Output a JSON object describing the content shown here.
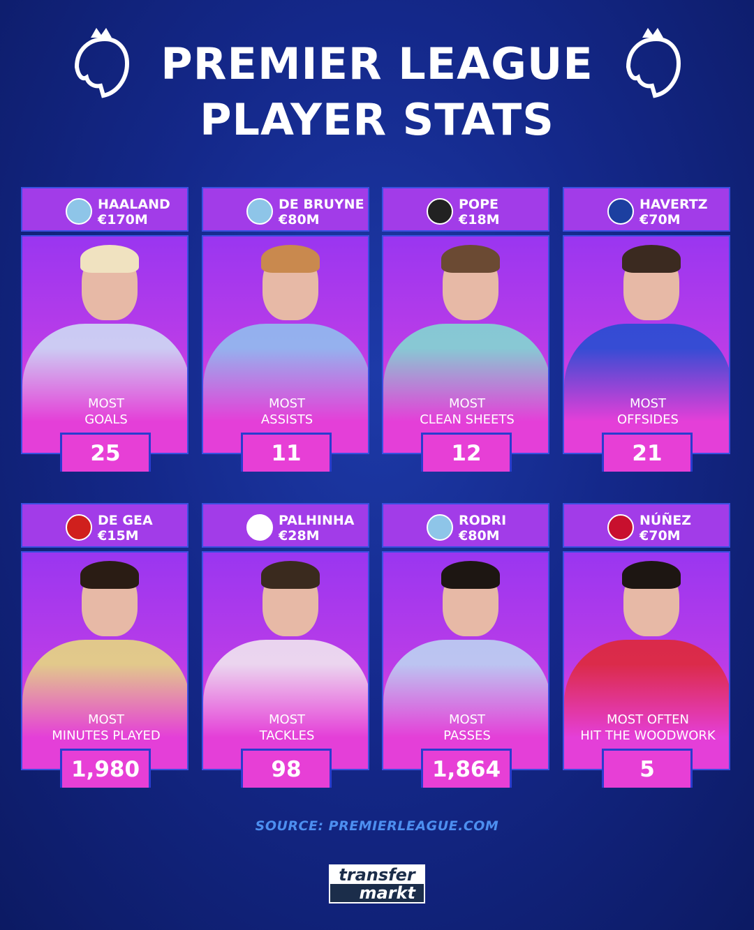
{
  "title": {
    "line1": "PREMIER LEAGUE",
    "line2": "PLAYER STATS"
  },
  "icons": {
    "header": "premier-league-lion-icon"
  },
  "colors": {
    "background": "#14288a",
    "card_header": "#a23ce8",
    "card_gradient_bottom": "#e43fd8",
    "value_box": "#e73fd6",
    "source": "#4d8ff0"
  },
  "cards": [
    {
      "name": "HAALAND",
      "value": "€170M",
      "club": "manchester-city",
      "stat_line1": "MOST",
      "stat_line2": "GOALS",
      "stat": "25",
      "jersey": "#cfe4f5",
      "hair": "#f0e2c0",
      "crest": "#8ec5e8"
    },
    {
      "name": "DE BRUYNE",
      "value": "€80M",
      "club": "manchester-city",
      "stat_line1": "MOST",
      "stat_line2": "ASSISTS",
      "stat": "11",
      "jersey": "#8ec5ee",
      "hair": "#c9894e",
      "crest": "#8ec5e8"
    },
    {
      "name": "POPE",
      "value": "€18M",
      "club": "newcastle-united",
      "stat_line1": "MOST",
      "stat_line2": "CLEAN SHEETS",
      "stat": "12",
      "jersey": "#7fe0d0",
      "hair": "#6b4a33",
      "crest": "#222222"
    },
    {
      "name": "HAVERTZ",
      "value": "€70M",
      "club": "chelsea",
      "stat_line1": "MOST",
      "stat_line2": "OFFSIDES",
      "stat": "21",
      "jersey": "#1f4fd0",
      "hair": "#3b2a20",
      "crest": "#1c3fa0"
    },
    {
      "name": "DE GEA",
      "value": "€15M",
      "club": "manchester-united",
      "stat_line1": "MOST",
      "stat_line2": "MINUTES PLAYED",
      "stat": "1,980",
      "jersey": "#e9e27a",
      "hair": "#2a1c14",
      "crest": "#d0201d"
    },
    {
      "name": "PALHINHA",
      "value": "€28M",
      "club": "fulham",
      "stat_line1": "MOST",
      "stat_line2": "TACKLES",
      "stat": "98",
      "jersey": "#f3f0f0",
      "hair": "#3a2a1e",
      "crest": "#ffffff"
    },
    {
      "name": "RODRI",
      "value": "€80M",
      "club": "manchester-city",
      "stat_line1": "MOST",
      "stat_line2": "PASSES",
      "stat": "1,864",
      "jersey": "#bcdcf2",
      "hair": "#1d1612",
      "crest": "#8ec5e8"
    },
    {
      "name": "NÚÑEZ",
      "value": "€70M",
      "club": "liverpool",
      "stat_line1": "MOST OFTEN",
      "stat_line2": "HIT THE WOODWORK",
      "stat": "5",
      "jersey": "#e0282e",
      "hair": "#1d1612",
      "crest": "#c8102e"
    }
  ],
  "source": "SOURCE: PREMIERLEAGUE.COM",
  "logo": {
    "line1": "transfer",
    "line2": "markt"
  }
}
